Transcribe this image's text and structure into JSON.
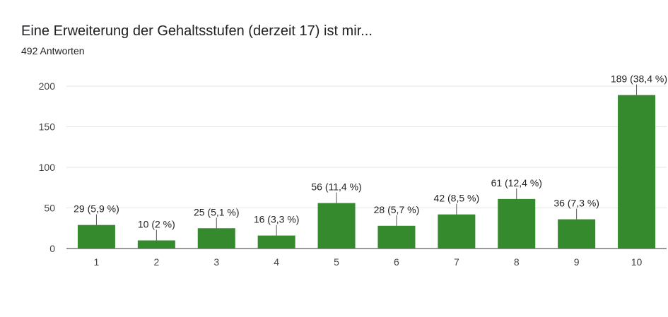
{
  "header": {
    "title": "Eine Erweiterung der Gehaltsstufen (derzeit 17) ist mir...",
    "subtitle": "492 Antworten"
  },
  "chart_data": {
    "type": "bar",
    "title": "Eine Erweiterung der Gehaltsstufen (derzeit 17) ist mir...",
    "subtitle": "492 Antworten",
    "categories": [
      "1",
      "2",
      "3",
      "4",
      "5",
      "6",
      "7",
      "8",
      "9",
      "10"
    ],
    "values": [
      29,
      10,
      25,
      16,
      56,
      28,
      42,
      61,
      36,
      189
    ],
    "data_labels": [
      "29 (5,9 %)",
      "10 (2 %)",
      "25 (5,1 %)",
      "16 (3,3 %)",
      "56 (11,4 %)",
      "28 (5,7 %)",
      "42 (8,5 %)",
      "61 (12,4 %)",
      "36 (7,3 %)",
      "189 (38,4 %)"
    ],
    "yticks": [
      0,
      50,
      100,
      150,
      200
    ],
    "ylim": [
      0,
      200
    ],
    "xlabel": "",
    "ylabel": "",
    "grid": true,
    "bar_color": "#368a2e",
    "grid_color": "#e6e6e6",
    "axis_color": "#333333"
  }
}
